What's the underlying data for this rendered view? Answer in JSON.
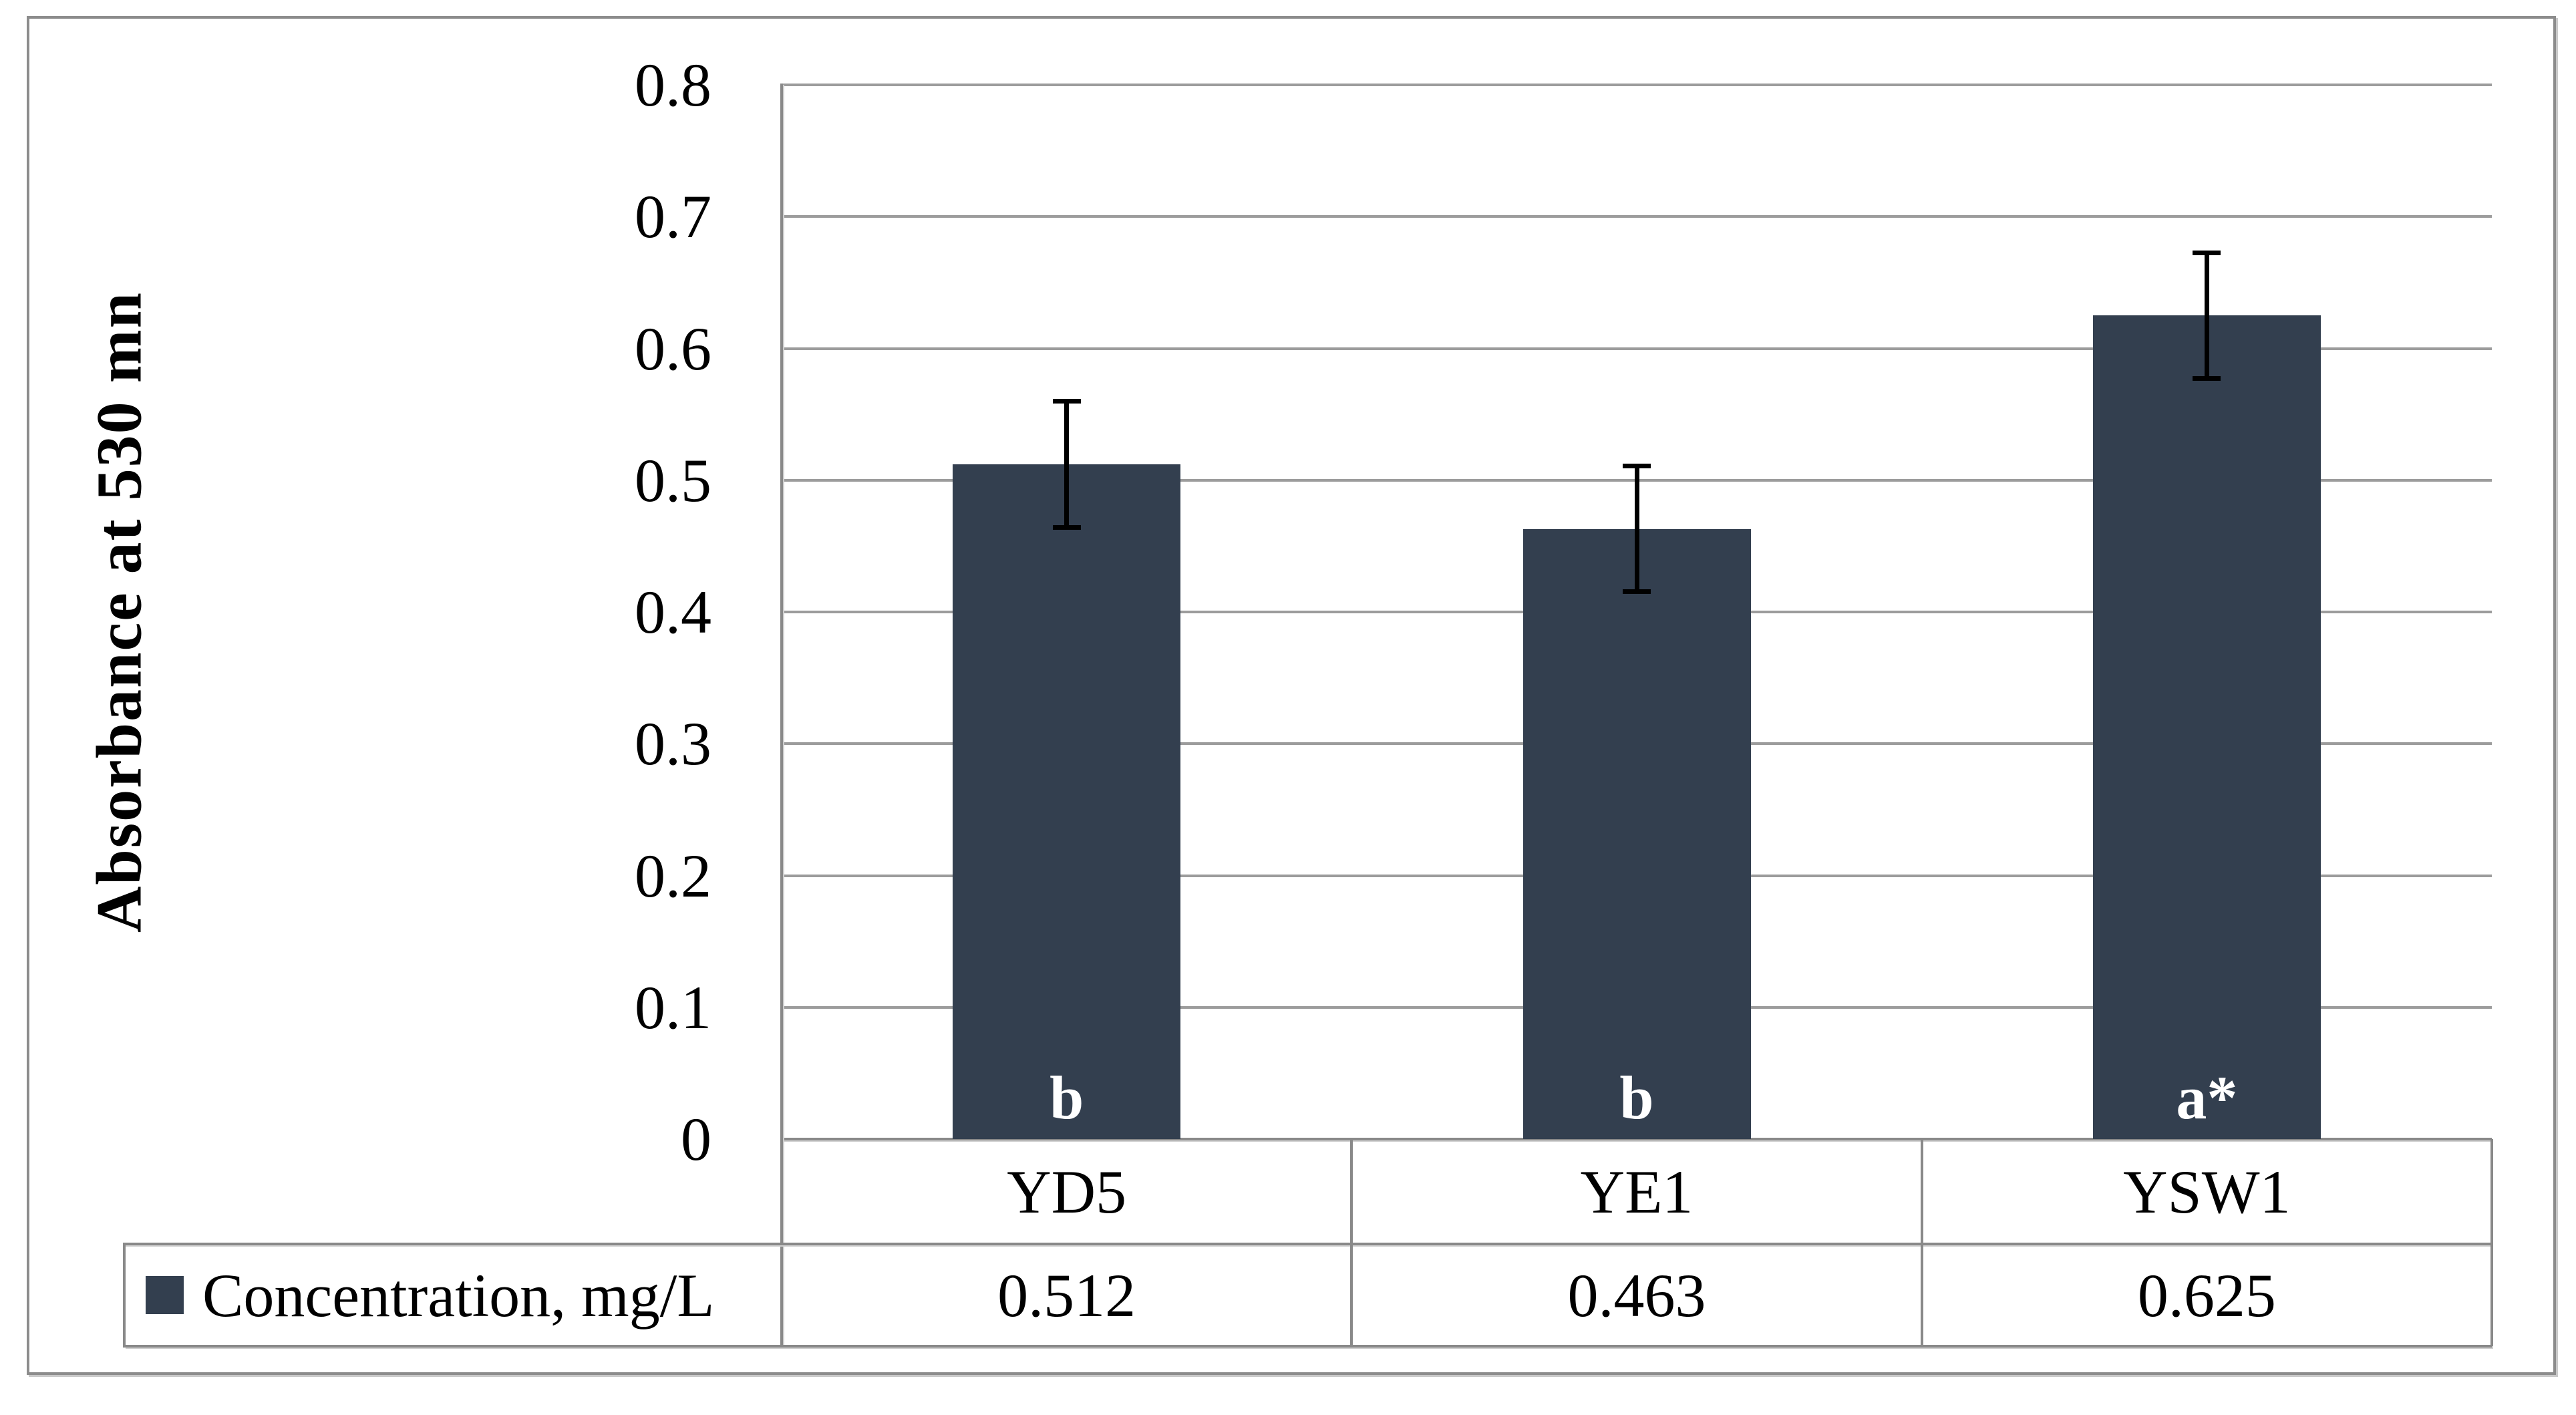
{
  "chart_data": {
    "type": "bar",
    "title": "",
    "categories": [
      "YD5",
      "YE1",
      "YSW1"
    ],
    "series": [
      {
        "name": "Concentration, mg/L",
        "values": [
          0.512,
          0.463,
          0.625
        ]
      }
    ],
    "value_labels": [
      "0.512",
      "0.463",
      "0.625"
    ],
    "bar_letter_annotations": [
      "b",
      "b",
      "a*"
    ],
    "error_bars": {
      "type": "symmetric",
      "plus_minus": 0.048
    },
    "ylabel": "Absorbance at 530 mn",
    "xlabel": "",
    "ylim": [
      0,
      0.8
    ],
    "ytick_interval": 0.1,
    "ytick_labels": [
      "0.8",
      "0.7",
      "0.6",
      "0.5",
      "0.4",
      "0.3",
      "0.2",
      "0.1",
      "0"
    ],
    "grid": "horizontal-major",
    "legend_position": "bottom-table-header",
    "colors": {
      "bar_fill": "#333F4F",
      "gridline": "#9C9C9C",
      "axis_and_table_border": "#898989",
      "figure_border": "#8C8C8C",
      "annotation_text": "#FFFFFF",
      "label_text": "#000000"
    }
  }
}
